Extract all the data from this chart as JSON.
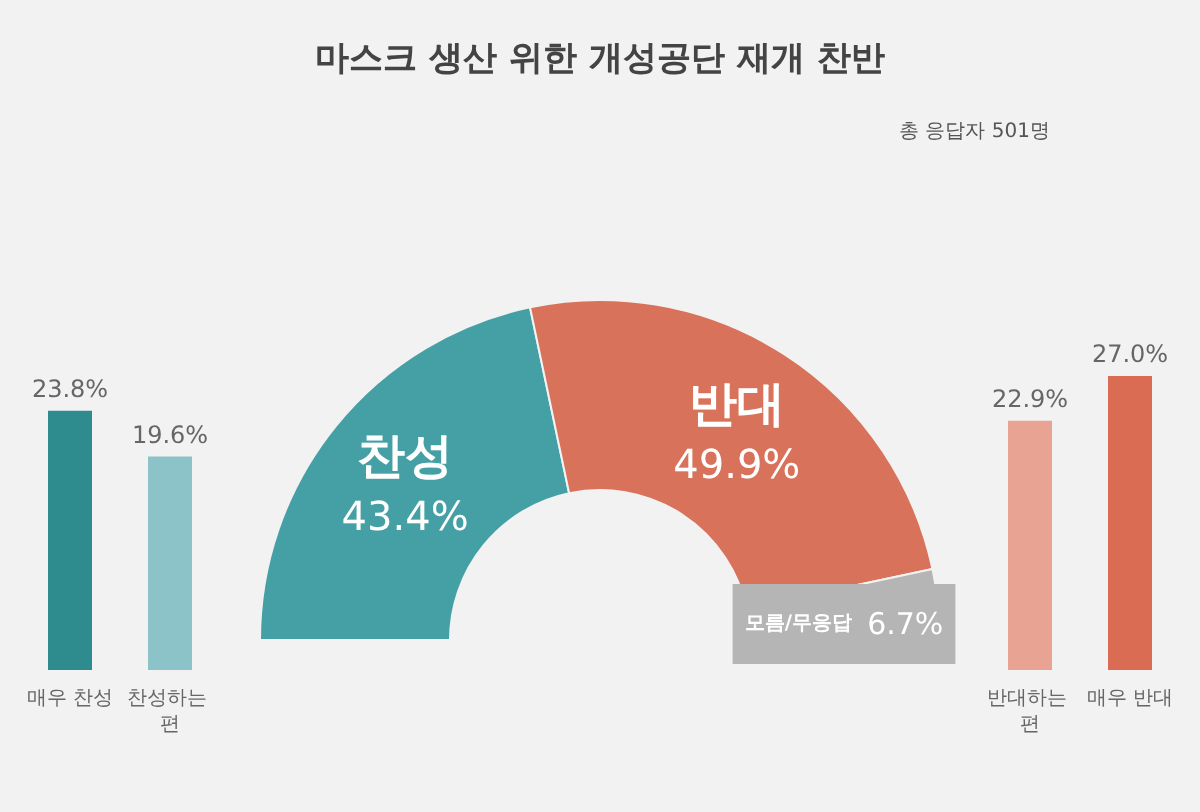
{
  "chart_data": [
    {
      "type": "donut",
      "title": "마스크 생산 위한 개성공단 재개 찬반",
      "subtitle": "총 응답자 501명",
      "categories": [
        "찬성",
        "반대",
        "모름/무응답"
      ],
      "values": [
        43.4,
        49.9,
        6.7
      ],
      "value_labels": [
        "43.4%",
        "49.9%",
        "6.7%"
      ],
      "colors": [
        "#45a0a5",
        "#d9725a",
        "#b5b5b5"
      ],
      "legend": false
    },
    {
      "type": "bar",
      "categories": [
        "매우 찬성",
        "찬성하는 편"
      ],
      "values": [
        23.8,
        19.6
      ],
      "value_labels": [
        "23.8%",
        "19.6%"
      ],
      "colors": [
        "#2e8b8e",
        "#8cc3c8"
      ],
      "legend": false
    },
    {
      "type": "bar",
      "categories": [
        "반대하는 편",
        "매우 반대"
      ],
      "values": [
        22.9,
        27.0
      ],
      "value_labels": [
        "22.9%",
        "27.0%"
      ],
      "colors": [
        "#e8a393",
        "#d96c52"
      ],
      "legend": false
    }
  ]
}
